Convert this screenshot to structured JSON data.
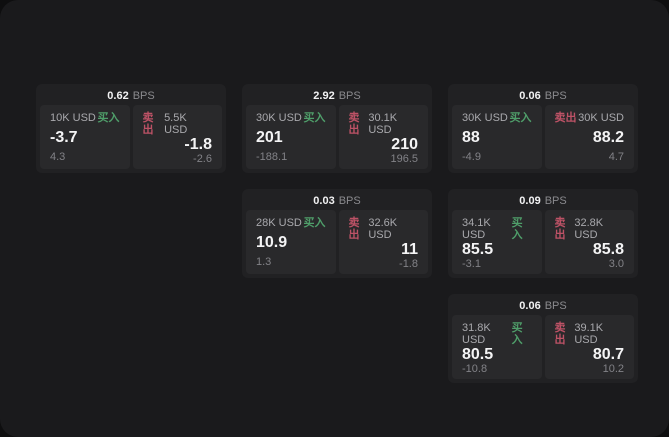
{
  "labels": {
    "bps_unit": "BPS",
    "buy": "买入",
    "sell": "卖出"
  },
  "colors": {
    "background": "#1a1a1c",
    "card": "#212123",
    "panel": "#29292b",
    "buy_green": "#4f9e6a",
    "sell_red": "#bd5266",
    "value_white": "#f4f4f5",
    "muted_gray": "#828287"
  },
  "cards": [
    {
      "bps": "0.62",
      "buy": {
        "amount": "10K USD",
        "value": "-3.7",
        "change": "4.3"
      },
      "sell": {
        "amount": "5.5K USD",
        "value": "-1.8",
        "change": "-2.6"
      }
    },
    {
      "bps": "2.92",
      "buy": {
        "amount": "30K USD",
        "value": "201",
        "change": "-188.1"
      },
      "sell": {
        "amount": "30.1K USD",
        "value": "210",
        "change": "196.5"
      }
    },
    {
      "bps": "0.06",
      "buy": {
        "amount": "30K USD",
        "value": "88",
        "change": "-4.9"
      },
      "sell": {
        "amount": "30K USD",
        "value": "88.2",
        "change": "4.7"
      }
    },
    {
      "bps": "0.03",
      "buy": {
        "amount": "28K USD",
        "value": "10.9",
        "change": "1.3"
      },
      "sell": {
        "amount": "32.6K USD",
        "value": "11",
        "change": "-1.8"
      }
    },
    {
      "bps": "0.09",
      "buy": {
        "amount": "34.1K USD",
        "value": "85.5",
        "change": "-3.1"
      },
      "sell": {
        "amount": "32.8K USD",
        "value": "85.8",
        "change": "3.0"
      }
    },
    {
      "bps": "0.06",
      "buy": {
        "amount": "31.8K USD",
        "value": "80.5",
        "change": "-10.8"
      },
      "sell": {
        "amount": "39.1K USD",
        "value": "80.7",
        "change": "10.2"
      }
    }
  ]
}
